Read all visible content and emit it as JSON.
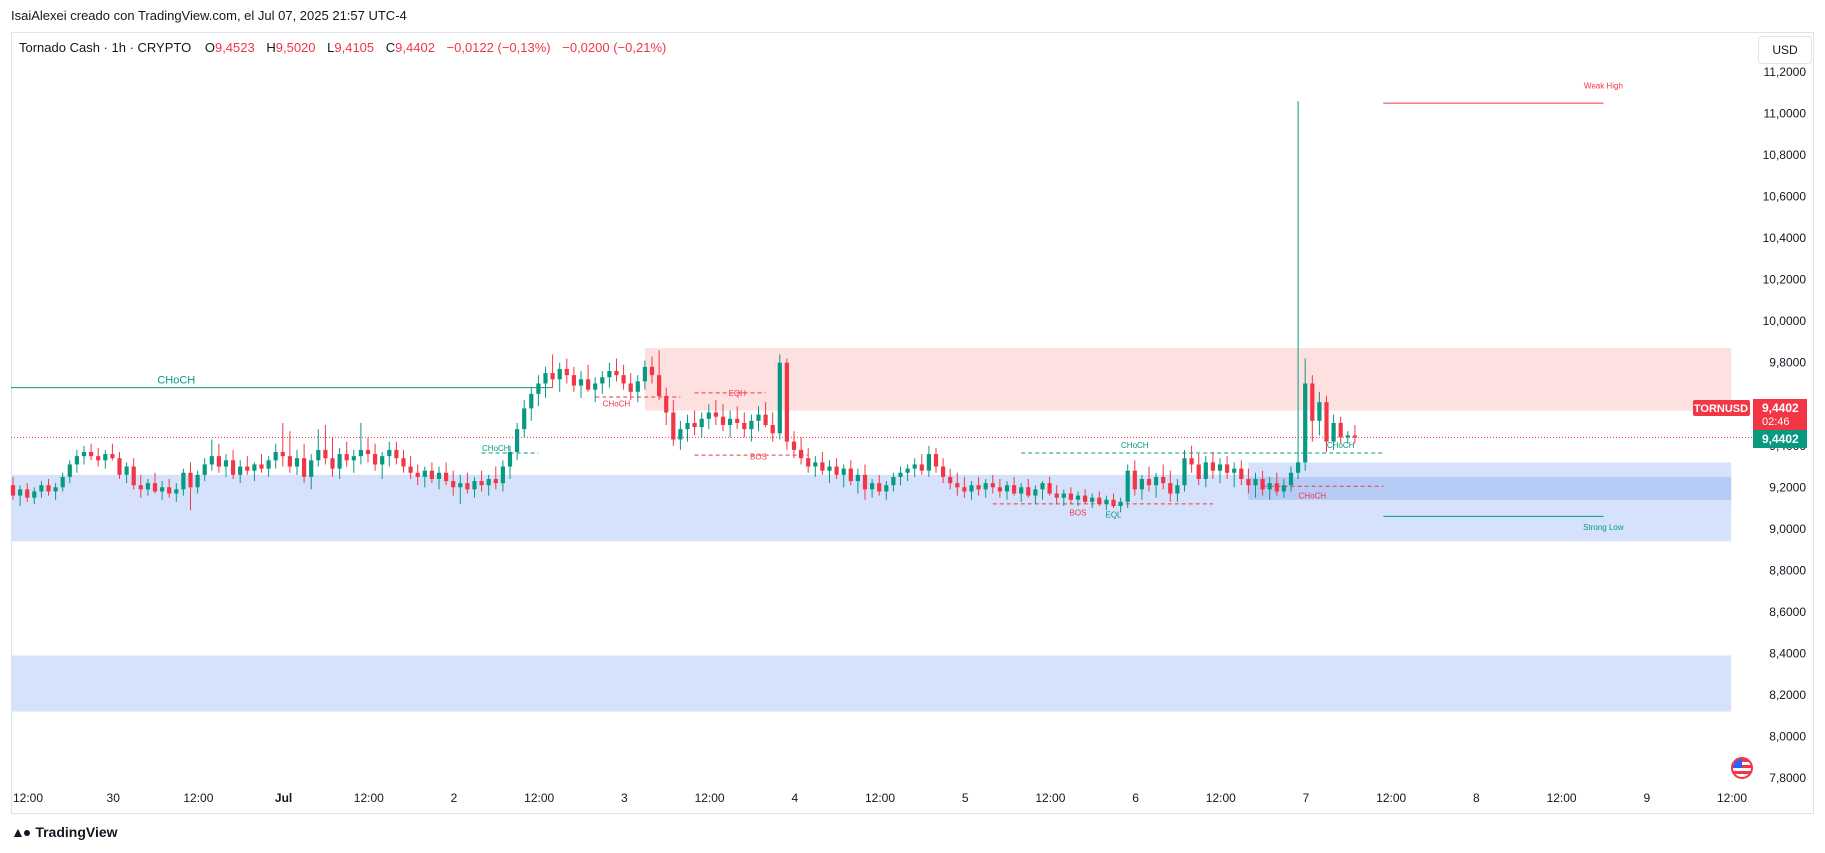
{
  "caption": "IsaiAlexei creado con TradingView.com, el Jul 07, 2025 21:57 UTC-4",
  "legend": {
    "symbol": "Tornado Cash · 1h · CRYPTO",
    "o_label": "O",
    "o_value": "9,4523",
    "h_label": "H",
    "h_value": "9,5020",
    "l_label": "L",
    "l_value": "9,4105",
    "c_label": "C",
    "c_value": "9,4402",
    "change": "−0,0122 (−0,13%)",
    "change2": "−0,0200 (−0,21%)"
  },
  "currency_button": "USD",
  "branding": "TradingView",
  "colors": {
    "up": "#089981",
    "down": "#f23645",
    "demand_zone": "#d6e2fc",
    "demand_zone_strong": "#a9c2f5",
    "supply_zone": "#fde0e0"
  },
  "chart_data": {
    "type": "candlestick",
    "timeframe": "1h",
    "ylim": [
      7.8,
      11.2
    ],
    "y_ticks": [
      "11,2000",
      "11,0000",
      "10,8000",
      "10,6000",
      "10,4000",
      "10,2000",
      "10,0000",
      "9,8000",
      "9,6000",
      "9,4000",
      "9,2000",
      "9,0000",
      "8,8000",
      "8,6000",
      "8,4000",
      "8,2000",
      "8,0000",
      "7,8000"
    ],
    "x_ticks": [
      "12:00",
      "30",
      "12:00",
      "Jul",
      "12:00",
      "2",
      "12:00",
      "3",
      "12:00",
      "4",
      "12:00",
      "5",
      "12:00",
      "6",
      "12:00",
      "7",
      "12:00",
      "8",
      "12:00",
      "9",
      "12:00"
    ],
    "x_ticks_bold": [
      "Jul"
    ],
    "price_labels": [
      {
        "text": "TORNUSD",
        "color": "#f23645"
      },
      {
        "text": "9,4402",
        "sub": "02:46",
        "color": "#f23645"
      },
      {
        "text": "9,4402",
        "color": "#089981"
      }
    ],
    "current_price": 9.4402,
    "zones": [
      {
        "kind": "demand",
        "from_hour": -6,
        "to_hour": 242,
        "low": 8.94,
        "high": 9.26
      },
      {
        "kind": "demand",
        "from_hour": -6,
        "to_hour": 242,
        "low": 8.12,
        "high": 8.39
      },
      {
        "kind": "supply",
        "from_hour": 89,
        "to_hour": 242,
        "low": 9.57,
        "high": 9.87
      },
      {
        "kind": "demand",
        "from_hour": 174,
        "to_hour": 242,
        "low": 9.1,
        "high": 9.32
      },
      {
        "kind": "demand_strong",
        "from_hour": 174,
        "to_hour": 242,
        "low": 9.14,
        "high": 9.25
      }
    ],
    "structure_labels": [
      {
        "text": "CHoCH",
        "hour": 23,
        "price": 9.7,
        "color": "#089981",
        "size": "large"
      },
      {
        "text": "CHoCH",
        "hour": 68,
        "price": 9.375,
        "color": "#089981"
      },
      {
        "text": "CHoCH",
        "hour": 85,
        "price": 9.59,
        "color": "#f23645"
      },
      {
        "text": "EQH",
        "hour": 102,
        "price": 9.64,
        "color": "#f23645"
      },
      {
        "text": "BOS",
        "hour": 105,
        "price": 9.335,
        "color": "#f23645"
      },
      {
        "text": "CHoCH",
        "hour": 158,
        "price": 9.39,
        "color": "#089981"
      },
      {
        "text": "BOS",
        "hour": 150,
        "price": 9.065,
        "color": "#f23645"
      },
      {
        "text": "EQL",
        "hour": 155,
        "price": 9.055,
        "color": "#089981"
      },
      {
        "text": "CHoCH",
        "hour": 187,
        "price": 9.39,
        "color": "#089981"
      },
      {
        "text": "CHoCH",
        "hour": 183,
        "price": 9.145,
        "color": "#f23645"
      },
      {
        "text": "Weak High",
        "hour": 224,
        "price": 11.12,
        "color": "#f23645"
      },
      {
        "text": "Strong Low",
        "hour": 224,
        "price": 8.995,
        "color": "#089981"
      }
    ],
    "structure_lines": [
      {
        "from_hour": -6,
        "to_hour": 76,
        "price": 9.68,
        "color": "#089981",
        "dashed": false
      },
      {
        "from_hour": 66,
        "to_hour": 74,
        "price": 9.365,
        "color": "#089981",
        "dashed": true
      },
      {
        "from_hour": 82,
        "to_hour": 94,
        "price": 9.635,
        "color": "#f23645",
        "dashed": true
      },
      {
        "from_hour": 96,
        "to_hour": 106,
        "price": 9.655,
        "color": "#f23645",
        "dashed": true
      },
      {
        "from_hour": 96,
        "to_hour": 112,
        "price": 9.355,
        "color": "#f23645",
        "dashed": true
      },
      {
        "from_hour": 142,
        "to_hour": 193,
        "price": 9.365,
        "color": "#089981",
        "dashed": true
      },
      {
        "from_hour": 138,
        "to_hour": 169,
        "price": 9.12,
        "color": "#f23645",
        "dashed": true
      },
      {
        "from_hour": 176,
        "to_hour": 193,
        "price": 9.205,
        "color": "#f23645",
        "dashed": true
      },
      {
        "from_hour": 193,
        "to_hour": 224,
        "price": 11.05,
        "color": "#f23645",
        "dashed": false
      },
      {
        "from_hour": 193,
        "to_hour": 224,
        "price": 9.06,
        "color": "#089981",
        "dashed": false
      }
    ],
    "candles": [
      [
        9.21,
        9.25,
        9.14,
        9.16
      ],
      [
        9.16,
        9.21,
        9.11,
        9.19
      ],
      [
        9.19,
        9.22,
        9.13,
        9.15
      ],
      [
        9.15,
        9.2,
        9.12,
        9.18
      ],
      [
        9.18,
        9.23,
        9.15,
        9.21
      ],
      [
        9.21,
        9.24,
        9.16,
        9.18
      ],
      [
        9.18,
        9.22,
        9.14,
        9.2
      ],
      [
        9.2,
        9.27,
        9.18,
        9.25
      ],
      [
        9.25,
        9.33,
        9.22,
        9.31
      ],
      [
        9.31,
        9.38,
        9.27,
        9.35
      ],
      [
        9.35,
        9.4,
        9.31,
        9.37
      ],
      [
        9.37,
        9.41,
        9.33,
        9.35
      ],
      [
        9.35,
        9.39,
        9.3,
        9.33
      ],
      [
        9.33,
        9.38,
        9.29,
        9.36
      ],
      [
        9.36,
        9.41,
        9.33,
        9.34
      ],
      [
        9.34,
        9.37,
        9.24,
        9.26
      ],
      [
        9.26,
        9.32,
        9.22,
        9.3
      ],
      [
        9.3,
        9.34,
        9.19,
        9.21
      ],
      [
        9.21,
        9.26,
        9.15,
        9.19
      ],
      [
        9.19,
        9.24,
        9.16,
        9.22
      ],
      [
        9.22,
        9.27,
        9.17,
        9.18
      ],
      [
        9.18,
        9.23,
        9.14,
        9.2
      ],
      [
        9.2,
        9.24,
        9.15,
        9.17
      ],
      [
        9.17,
        9.22,
        9.13,
        9.19
      ],
      [
        9.19,
        9.29,
        9.16,
        9.27
      ],
      [
        9.27,
        9.32,
        9.09,
        9.2
      ],
      [
        9.2,
        9.28,
        9.17,
        9.26
      ],
      [
        9.26,
        9.34,
        9.23,
        9.31
      ],
      [
        9.31,
        9.43,
        9.28,
        9.35
      ],
      [
        9.35,
        9.41,
        9.27,
        9.3
      ],
      [
        9.3,
        9.36,
        9.25,
        9.33
      ],
      [
        9.33,
        9.38,
        9.24,
        9.26
      ],
      [
        9.26,
        9.33,
        9.22,
        9.3
      ],
      [
        9.3,
        9.35,
        9.26,
        9.28
      ],
      [
        9.28,
        9.32,
        9.23,
        9.31
      ],
      [
        9.31,
        9.36,
        9.27,
        9.29
      ],
      [
        9.29,
        9.35,
        9.25,
        9.33
      ],
      [
        9.33,
        9.41,
        9.29,
        9.37
      ],
      [
        9.37,
        9.51,
        9.3,
        9.35
      ],
      [
        9.35,
        9.47,
        9.27,
        9.3
      ],
      [
        9.3,
        9.38,
        9.26,
        9.34
      ],
      [
        9.34,
        9.41,
        9.22,
        9.25
      ],
      [
        9.25,
        9.36,
        9.19,
        9.33
      ],
      [
        9.33,
        9.48,
        9.3,
        9.38
      ],
      [
        9.38,
        9.5,
        9.31,
        9.34
      ],
      [
        9.34,
        9.44,
        9.25,
        9.29
      ],
      [
        9.29,
        9.39,
        9.24,
        9.36
      ],
      [
        9.36,
        9.42,
        9.3,
        9.33
      ],
      [
        9.33,
        9.38,
        9.27,
        9.35
      ],
      [
        9.35,
        9.51,
        9.31,
        9.38
      ],
      [
        9.38,
        9.44,
        9.32,
        9.36
      ],
      [
        9.36,
        9.41,
        9.28,
        9.31
      ],
      [
        9.31,
        9.37,
        9.24,
        9.35
      ],
      [
        9.35,
        9.42,
        9.3,
        9.38
      ],
      [
        9.38,
        9.42,
        9.31,
        9.34
      ],
      [
        9.34,
        9.38,
        9.27,
        9.3
      ],
      [
        9.3,
        9.35,
        9.24,
        9.27
      ],
      [
        9.27,
        9.31,
        9.21,
        9.25
      ],
      [
        9.25,
        9.3,
        9.2,
        9.28
      ],
      [
        9.28,
        9.32,
        9.22,
        9.24
      ],
      [
        9.24,
        9.3,
        9.19,
        9.27
      ],
      [
        9.27,
        9.32,
        9.21,
        9.23
      ],
      [
        9.23,
        9.28,
        9.16,
        9.2
      ],
      [
        9.2,
        9.26,
        9.12,
        9.22
      ],
      [
        9.22,
        9.27,
        9.17,
        9.19
      ],
      [
        9.19,
        9.25,
        9.15,
        9.23
      ],
      [
        9.23,
        9.28,
        9.18,
        9.21
      ],
      [
        9.21,
        9.26,
        9.16,
        9.24
      ],
      [
        9.24,
        9.3,
        9.19,
        9.22
      ],
      [
        9.22,
        9.33,
        9.18,
        9.3
      ],
      [
        9.3,
        9.4,
        9.24,
        9.37
      ],
      [
        9.37,
        9.51,
        9.33,
        9.48
      ],
      [
        9.48,
        9.62,
        9.44,
        9.58
      ],
      [
        9.58,
        9.68,
        9.52,
        9.65
      ],
      [
        9.65,
        9.74,
        9.59,
        9.7
      ],
      [
        9.7,
        9.78,
        9.63,
        9.75
      ],
      [
        9.75,
        9.84,
        9.68,
        9.72
      ],
      [
        9.72,
        9.8,
        9.66,
        9.77
      ],
      [
        9.77,
        9.82,
        9.7,
        9.74
      ],
      [
        9.74,
        9.78,
        9.66,
        9.69
      ],
      [
        9.69,
        9.76,
        9.63,
        9.72
      ],
      [
        9.72,
        9.79,
        9.66,
        9.67
      ],
      [
        9.67,
        9.73,
        9.61,
        9.7
      ],
      [
        9.7,
        9.76,
        9.65,
        9.73
      ],
      [
        9.73,
        9.8,
        9.68,
        9.76
      ],
      [
        9.76,
        9.82,
        9.71,
        9.74
      ],
      [
        9.74,
        9.79,
        9.67,
        9.7
      ],
      [
        9.7,
        9.75,
        9.62,
        9.66
      ],
      [
        9.66,
        9.74,
        9.61,
        9.71
      ],
      [
        9.71,
        9.81,
        9.67,
        9.78
      ],
      [
        9.78,
        9.83,
        9.7,
        9.74
      ],
      [
        9.74,
        9.86,
        9.62,
        9.64
      ],
      [
        9.64,
        9.68,
        9.5,
        9.56
      ],
      [
        9.56,
        9.62,
        9.4,
        9.43
      ],
      [
        9.43,
        9.52,
        9.38,
        9.48
      ],
      [
        9.48,
        9.55,
        9.42,
        9.51
      ],
      [
        9.51,
        9.57,
        9.45,
        9.49
      ],
      [
        9.49,
        9.56,
        9.44,
        9.53
      ],
      [
        9.53,
        9.6,
        9.48,
        9.56
      ],
      [
        9.56,
        9.62,
        9.5,
        9.54
      ],
      [
        9.54,
        9.6,
        9.47,
        9.5
      ],
      [
        9.5,
        9.57,
        9.44,
        9.53
      ],
      [
        9.53,
        9.59,
        9.48,
        9.51
      ],
      [
        9.51,
        9.56,
        9.44,
        9.48
      ],
      [
        9.48,
        9.55,
        9.42,
        9.52
      ],
      [
        9.52,
        9.59,
        9.47,
        9.55
      ],
      [
        9.55,
        9.61,
        9.49,
        9.5
      ],
      [
        9.5,
        9.56,
        9.42,
        9.46
      ],
      [
        9.46,
        9.84,
        9.43,
        9.8
      ],
      [
        9.8,
        9.82,
        9.38,
        9.42
      ],
      [
        9.42,
        9.47,
        9.34,
        9.38
      ],
      [
        9.38,
        9.44,
        9.31,
        9.34
      ],
      [
        9.34,
        9.39,
        9.27,
        9.3
      ],
      [
        9.3,
        9.35,
        9.25,
        9.32
      ],
      [
        9.32,
        9.37,
        9.26,
        9.28
      ],
      [
        9.28,
        9.33,
        9.22,
        9.3
      ],
      [
        9.3,
        9.34,
        9.24,
        9.26
      ],
      [
        9.26,
        9.31,
        9.2,
        9.29
      ],
      [
        9.29,
        9.33,
        9.21,
        9.23
      ],
      [
        9.23,
        9.29,
        9.17,
        9.26
      ],
      [
        9.26,
        9.31,
        9.14,
        9.19
      ],
      [
        9.19,
        9.24,
        9.15,
        9.22
      ],
      [
        9.22,
        9.26,
        9.16,
        9.18
      ],
      [
        9.18,
        9.23,
        9.14,
        9.21
      ],
      [
        9.21,
        9.27,
        9.18,
        9.25
      ],
      [
        9.25,
        9.3,
        9.21,
        9.27
      ],
      [
        9.27,
        9.31,
        9.23,
        9.29
      ],
      [
        9.29,
        9.34,
        9.25,
        9.31
      ],
      [
        9.31,
        9.36,
        9.26,
        9.28
      ],
      [
        9.28,
        9.4,
        9.25,
        9.36
      ],
      [
        9.36,
        9.39,
        9.27,
        9.3
      ],
      [
        9.3,
        9.34,
        9.22,
        9.25
      ],
      [
        9.25,
        9.29,
        9.19,
        9.22
      ],
      [
        9.22,
        9.27,
        9.16,
        9.2
      ],
      [
        9.2,
        9.25,
        9.15,
        9.18
      ],
      [
        9.18,
        9.23,
        9.14,
        9.21
      ],
      [
        9.21,
        9.25,
        9.16,
        9.19
      ],
      [
        9.19,
        9.24,
        9.15,
        9.22
      ],
      [
        9.22,
        9.26,
        9.17,
        9.2
      ],
      [
        9.2,
        9.24,
        9.15,
        9.18
      ],
      [
        9.18,
        9.23,
        9.14,
        9.21
      ],
      [
        9.21,
        9.25,
        9.16,
        9.17
      ],
      [
        9.17,
        9.22,
        9.13,
        9.2
      ],
      [
        9.2,
        9.24,
        9.15,
        9.16
      ],
      [
        9.16,
        9.21,
        9.12,
        9.19
      ],
      [
        9.19,
        9.23,
        9.14,
        9.22
      ],
      [
        9.22,
        9.25,
        9.16,
        9.17
      ],
      [
        9.17,
        9.21,
        9.12,
        9.15
      ],
      [
        9.15,
        9.19,
        9.11,
        9.17
      ],
      [
        9.17,
        9.2,
        9.12,
        9.14
      ],
      [
        9.14,
        9.18,
        9.11,
        9.16
      ],
      [
        9.16,
        9.19,
        9.12,
        9.13
      ],
      [
        9.13,
        9.17,
        9.1,
        9.15
      ],
      [
        9.15,
        9.18,
        9.11,
        9.12
      ],
      [
        9.12,
        9.16,
        9.09,
        9.14
      ],
      [
        9.14,
        9.17,
        9.1,
        9.11
      ],
      [
        9.11,
        9.15,
        9.08,
        9.13
      ],
      [
        9.13,
        9.31,
        9.1,
        9.28
      ],
      [
        9.28,
        9.33,
        9.16,
        9.19
      ],
      [
        9.19,
        9.26,
        9.14,
        9.24
      ],
      [
        9.24,
        9.3,
        9.18,
        9.21
      ],
      [
        9.21,
        9.27,
        9.15,
        9.25
      ],
      [
        9.25,
        9.31,
        9.19,
        9.22
      ],
      [
        9.22,
        9.28,
        9.13,
        9.17
      ],
      [
        9.17,
        9.24,
        9.13,
        9.21
      ],
      [
        9.21,
        9.38,
        9.18,
        9.34
      ],
      [
        9.34,
        9.4,
        9.27,
        9.31
      ],
      [
        9.31,
        9.36,
        9.21,
        9.24
      ],
      [
        9.24,
        9.35,
        9.2,
        9.32
      ],
      [
        9.32,
        9.37,
        9.24,
        9.28
      ],
      [
        9.28,
        9.34,
        9.22,
        9.31
      ],
      [
        9.31,
        9.35,
        9.24,
        9.27
      ],
      [
        9.27,
        9.32,
        9.2,
        9.29
      ],
      [
        9.29,
        9.33,
        9.21,
        9.24
      ],
      [
        9.24,
        9.29,
        9.17,
        9.21
      ],
      [
        9.21,
        9.27,
        9.15,
        9.24
      ],
      [
        9.24,
        9.28,
        9.16,
        9.19
      ],
      [
        9.19,
        9.25,
        9.14,
        9.22
      ],
      [
        9.22,
        9.27,
        9.16,
        9.18
      ],
      [
        9.18,
        9.24,
        9.15,
        9.21
      ],
      [
        9.21,
        9.3,
        9.18,
        9.27
      ],
      [
        9.27,
        11.06,
        9.24,
        9.32
      ],
      [
        9.32,
        9.82,
        9.28,
        9.7
      ],
      [
        9.7,
        9.74,
        9.42,
        9.52
      ],
      [
        9.52,
        9.66,
        9.45,
        9.61
      ],
      [
        9.61,
        9.64,
        9.37,
        9.42
      ],
      [
        9.42,
        9.55,
        9.38,
        9.51
      ],
      [
        9.51,
        9.54,
        9.41,
        9.44
      ],
      [
        9.44,
        9.47,
        9.41,
        9.45
      ],
      [
        9.45,
        9.5,
        9.41,
        9.44
      ]
    ]
  }
}
